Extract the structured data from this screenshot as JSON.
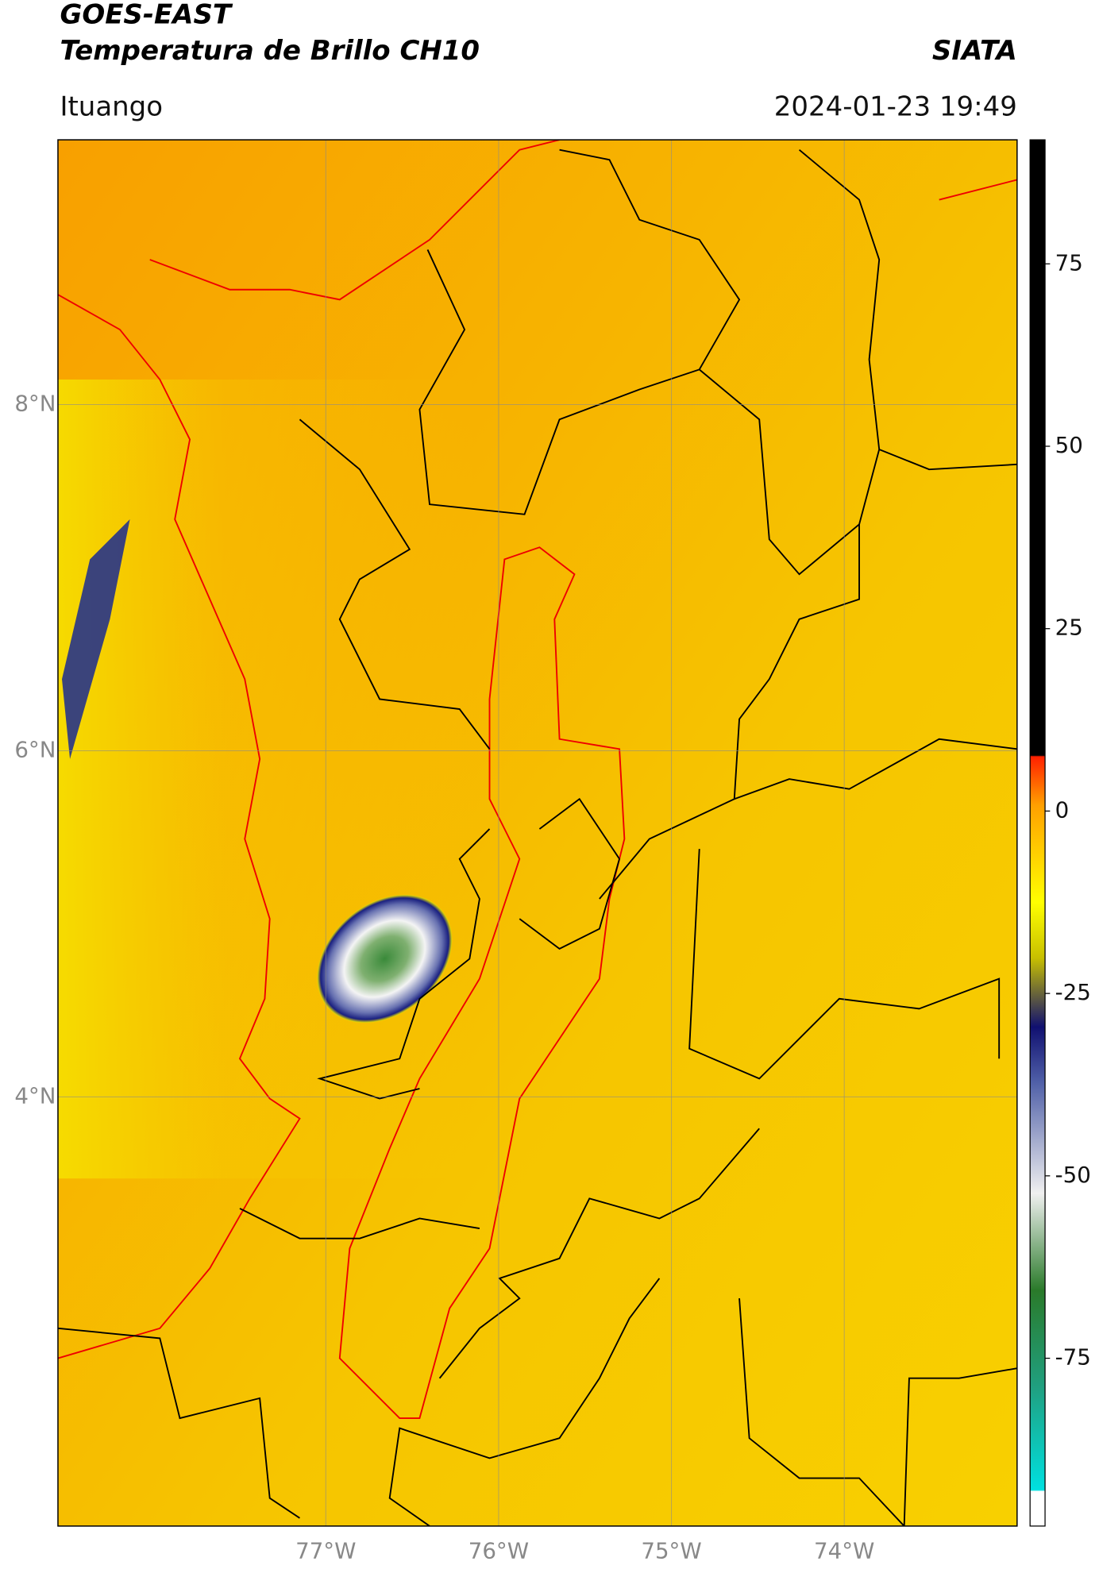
{
  "header": {
    "title": "GOES-EAST",
    "subtitle": "Temperatura de Brillo CH10",
    "source": "SIATA",
    "place": "Ituango",
    "datetime": "2024-01-23 19:49"
  },
  "map": {
    "xlim": [
      -78.55,
      -73.0
    ],
    "ylim": [
      1.52,
      9.53
    ],
    "xticks": [
      {
        "value": -77,
        "label": "77°W"
      },
      {
        "value": -76,
        "label": "76°W"
      },
      {
        "value": -75,
        "label": "75°W"
      },
      {
        "value": -74,
        "label": "74°W"
      }
    ],
    "yticks": [
      {
        "value": 8,
        "label": "8°N"
      },
      {
        "value": 6,
        "label": "6°N"
      },
      {
        "value": 4,
        "label": "4°N"
      }
    ],
    "grid": true
  },
  "colorbar": {
    "lim": [
      -98,
      92
    ],
    "ticks": [
      75,
      50,
      25,
      0,
      -25,
      -50,
      -75
    ]
  }
}
